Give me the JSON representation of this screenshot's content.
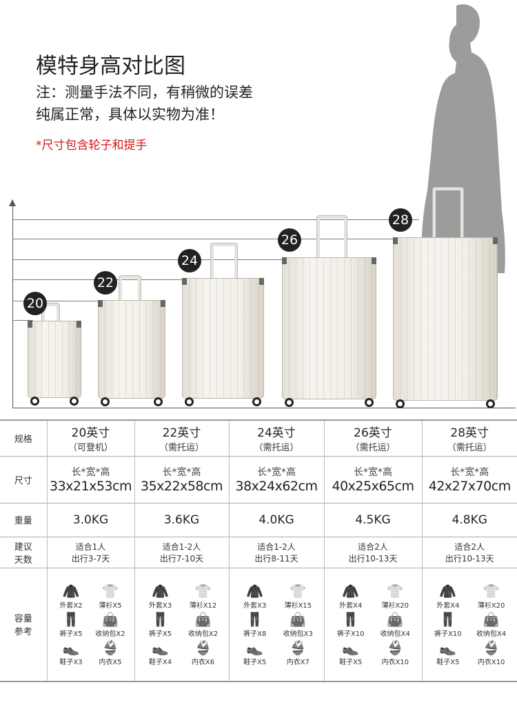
{
  "header": {
    "title": "模特身高对比图",
    "note1": "注：测量手法不同，有稍微的误差",
    "note2": "纯属正常，具体以实物为准！",
    "red_note": "*尺寸包含轮子和提手"
  },
  "colors": {
    "accent": "#d8141b",
    "badge": "#222222",
    "suit": "#f2efe8"
  },
  "suitcases": [
    {
      "size": "20"
    },
    {
      "size": "22"
    },
    {
      "size": "24"
    },
    {
      "size": "26"
    },
    {
      "size": "28"
    }
  ],
  "table": {
    "row_labels": {
      "spec": "规格",
      "dims": "尺寸",
      "weight": "重量",
      "trip": "建议天数",
      "capacity": "容量参考"
    },
    "columns": [
      {
        "name": "20英寸",
        "sub": "（可登机）",
        "lwh": "长*宽*高",
        "dims": "33x21x53cm",
        "weight": "3.0KG",
        "trip1": "适合1人",
        "trip2": "出行3-7天",
        "cap": [
          "外套X2",
          "薄衫X5",
          "裤子X5",
          "收纳包X2",
          "鞋子X3",
          "内衣X5"
        ]
      },
      {
        "name": "22英寸",
        "sub": "（需托运）",
        "lwh": "长*宽*高",
        "dims": "35x22x58cm",
        "weight": "3.6KG",
        "trip1": "适合1-2人",
        "trip2": "出行7-10天",
        "cap": [
          "外套X3",
          "薄衫X12",
          "裤子X5",
          "收纳包X2",
          "鞋子X4",
          "内衣X6"
        ]
      },
      {
        "name": "24英寸",
        "sub": "（需托运）",
        "lwh": "长*宽*高",
        "dims": "38x24x62cm",
        "weight": "4.0KG",
        "trip1": "适合1-2人",
        "trip2": "出行8-11天",
        "cap": [
          "外套X3",
          "薄衫X15",
          "裤子X8",
          "收纳包X3",
          "鞋子X5",
          "内衣X7"
        ]
      },
      {
        "name": "26英寸",
        "sub": "（需托运）",
        "lwh": "长*宽*高",
        "dims": "40x25x65cm",
        "weight": "4.5KG",
        "trip1": "适合2人",
        "trip2": "出行10-13天",
        "cap": [
          "外套X4",
          "薄衫X20",
          "裤子X10",
          "收纳包X4",
          "鞋子X5",
          "内衣X10"
        ]
      },
      {
        "name": "28英寸",
        "sub": "（需托运）",
        "lwh": "长*宽*高",
        "dims": "42x27x70cm",
        "weight": "4.8KG",
        "trip1": "适合2人",
        "trip2": "出行10-13天",
        "cap": [
          "外套X4",
          "薄衫X20",
          "裤子X10",
          "收纳包X4",
          "鞋子X5",
          "内衣X10"
        ]
      }
    ],
    "icons": [
      "jacket-icon",
      "shirt-icon",
      "pants-icon",
      "bag-icon",
      "shoe-icon",
      "bra-icon"
    ]
  }
}
